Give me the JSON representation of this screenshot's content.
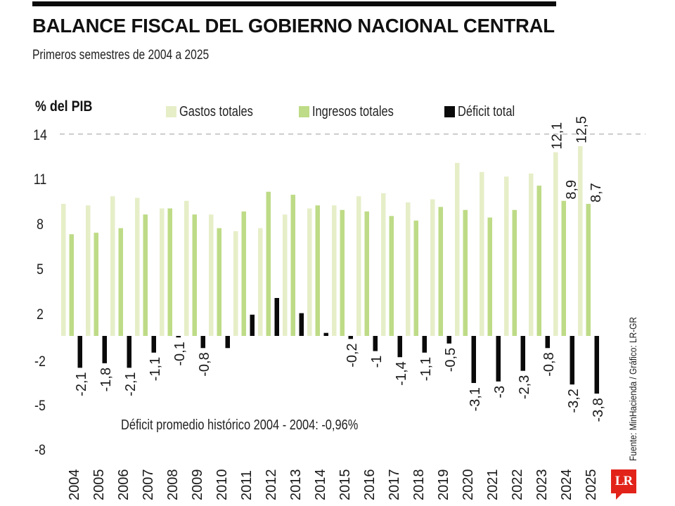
{
  "header": {
    "title": "BALANCE FISCAL DEL GOBIERNO NACIONAL CENTRAL",
    "subtitle": "Primeros semestres de 2004 a 2025"
  },
  "colors": {
    "gastos": "#e6eec8",
    "ingresos": "#bedb87",
    "deficit": "#0a0a0a",
    "logo": "#e2231a"
  },
  "chart_data": {
    "type": "bar",
    "title": "BALANCE FISCAL DEL GOBIERNO NACIONAL CENTRAL",
    "subtitle": "Primeros semestres de 2004 a 2025",
    "xlabel": "",
    "ylabel": "% del PIB",
    "yticks": [
      14,
      11,
      8,
      5,
      2,
      -2,
      -5,
      -8
    ],
    "ylim": [
      -8,
      14
    ],
    "grid": false,
    "reference_line": {
      "value": 13.3,
      "style": "dashed"
    },
    "legend_position": "top",
    "categories": [
      "2004",
      "2005",
      "2006",
      "2007",
      "2008",
      "2009",
      "2010",
      "2011",
      "2012",
      "2013",
      "2014",
      "2015",
      "2016",
      "2017",
      "2018",
      "2019",
      "2020",
      "2021",
      "2022",
      "2023",
      "2024",
      "2025"
    ],
    "series": [
      {
        "name": "Gastos totales",
        "values": [
          8.7,
          8.6,
          9.2,
          9.1,
          8.4,
          8.9,
          8.0,
          6.9,
          7.1,
          8.0,
          8.4,
          8.6,
          9.2,
          9.4,
          8.8,
          9.0,
          11.4,
          10.8,
          10.5,
          10.7,
          12.1,
          12.5
        ],
        "labels": [
          "",
          "",
          "",
          "",
          "",
          "",
          "",
          "",
          "",
          "",
          "",
          "",
          "",
          "",
          "",
          "",
          "",
          "",
          "",
          "",
          "12,1",
          "12,5"
        ]
      },
      {
        "name": "Ingresos totales",
        "values": [
          6.7,
          6.8,
          7.1,
          8.0,
          8.4,
          8.0,
          7.1,
          8.2,
          9.5,
          9.3,
          8.6,
          8.3,
          8.2,
          7.9,
          7.6,
          8.5,
          8.3,
          7.8,
          8.3,
          9.9,
          8.9,
          8.7
        ],
        "labels": [
          "",
          "",
          "",
          "",
          "",
          "",
          "",
          "",
          "",
          "",
          "",
          "",
          "",
          "",
          "",
          "",
          "",
          "",
          "",
          "",
          "8,9",
          "8,7"
        ]
      },
      {
        "name": "Déficit total",
        "values": [
          -2.1,
          -1.8,
          -2.1,
          -1.1,
          -0.1,
          -0.8,
          -0.8,
          1.4,
          2.5,
          1.5,
          0.2,
          -0.2,
          -1.0,
          -1.4,
          -1.1,
          -0.5,
          -3.1,
          -3.0,
          -2.3,
          -0.8,
          -3.2,
          -3.8
        ],
        "labels": [
          "-2,1",
          "-1,8",
          "-2,1",
          "-1,1",
          "-0,1",
          "-0,8",
          "",
          "",
          "",
          "",
          "",
          "-0,2",
          "-1",
          "-1,4",
          "-1,1",
          "-0,5",
          "-3,1",
          "-3",
          "-2,3",
          "-0,8",
          "-3,2",
          "-3,8"
        ]
      }
    ],
    "annotation": "Déficit promedio histórico 2004 - 2004: -0,96%"
  },
  "legend": [
    {
      "label": "Gastos totales",
      "color_key": "gastos"
    },
    {
      "label": "Ingresos totales",
      "color_key": "ingresos"
    },
    {
      "label": "Déficit total",
      "color_key": "deficit"
    }
  ],
  "footer": {
    "source": "Fuente: MinHacienda / Gráfico: LR-GR",
    "logo_text": "LR"
  }
}
